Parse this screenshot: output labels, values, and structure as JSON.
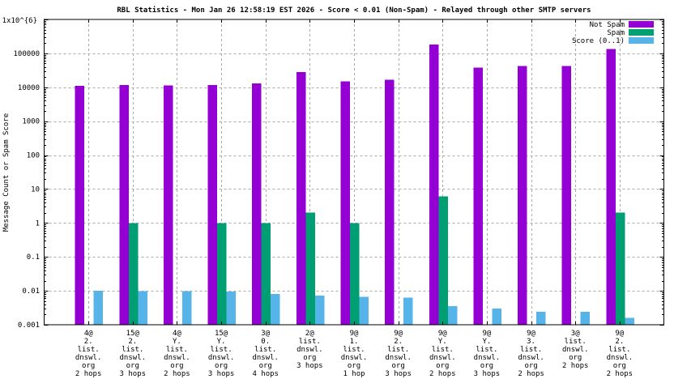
{
  "chart_data": {
    "type": "bar",
    "title": "RBL Statistics - Mon Jan 26 12:58:19 EST 2026 - Score < 0.01 (Non-Spam) - Relayed through other SMTP servers",
    "ylabel": "Message Count or Spam Score",
    "y_scale": "log",
    "ylim": [
      0.001,
      1000000
    ],
    "y_top_label": "1x10^{6}",
    "grid": true,
    "legend_position": "top-right",
    "colors": {
      "not_spam": "#9400d3",
      "spam": "#009e73",
      "score": "#56b4e9",
      "grid": "#aaaaaa",
      "frame": "#000000",
      "background": "#ffffff"
    },
    "y_ticks": [
      {
        "value": 100000,
        "label": "100000"
      },
      {
        "value": 10000,
        "label": "10000"
      },
      {
        "value": 1000,
        "label": "1000"
      },
      {
        "value": 100,
        "label": "100"
      },
      {
        "value": 10,
        "label": "10"
      },
      {
        "value": 1,
        "label": "1"
      },
      {
        "value": 0.1,
        "label": "0.1"
      },
      {
        "value": 0.01,
        "label": "0.01"
      },
      {
        "value": 0.001,
        "label": "0.001"
      }
    ],
    "categories": [
      [
        "4@",
        "2.",
        "list.",
        "dnswl.",
        "org",
        "2 hops"
      ],
      [
        "15@",
        "2.",
        "list.",
        "dnswl.",
        "org",
        "3 hops"
      ],
      [
        "4@",
        "Y.",
        "list.",
        "dnswl.",
        "org",
        "2 hops"
      ],
      [
        "15@",
        "Y.",
        "list.",
        "dnswl.",
        "org",
        "3 hops"
      ],
      [
        "3@",
        "0.",
        "list.",
        "dnswl.",
        "org",
        "4 hops"
      ],
      [
        "2@",
        "list.",
        "dnswl.",
        "org",
        "3 hops"
      ],
      [
        "9@",
        "1.",
        "list.",
        "dnswl.",
        "org",
        "1 hop"
      ],
      [
        "9@",
        "2.",
        "list.",
        "dnswl.",
        "org",
        "3 hops"
      ],
      [
        "9@",
        "Y.",
        "list.",
        "dnswl.",
        "org",
        "2 hops"
      ],
      [
        "9@",
        "Y.",
        "list.",
        "dnswl.",
        "org",
        "3 hops"
      ],
      [
        "9@",
        "3.",
        "list.",
        "dnswl.",
        "org",
        "2 hops"
      ],
      [
        "3@",
        "list.",
        "dnswl.",
        "org",
        "2 hops"
      ],
      [
        "9@",
        "2.",
        "list.",
        "dnswl.",
        "org",
        "2 hops"
      ]
    ],
    "series": [
      {
        "name": "Not Spam",
        "color": "#9400d3",
        "values": [
          11000,
          11500,
          11300,
          11500,
          13000,
          28000,
          15000,
          16500,
          180000,
          38000,
          42000,
          42000,
          135000
        ]
      },
      {
        "name": "Spam",
        "color": "#009e73",
        "values": [
          0,
          1,
          0,
          1,
          1,
          2,
          1,
          0,
          6,
          0,
          0,
          0,
          2
        ]
      },
      {
        "name": "Score (0..1)",
        "color": "#56b4e9",
        "values": [
          0.01,
          0.0097,
          0.0097,
          0.0095,
          0.008,
          0.0073,
          0.0067,
          0.0063,
          0.0035,
          0.003,
          0.0024,
          0.0024,
          0.0016
        ]
      }
    ]
  }
}
